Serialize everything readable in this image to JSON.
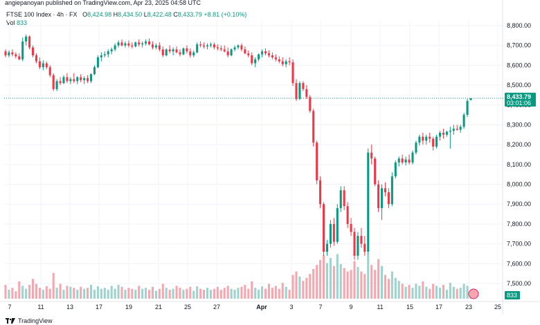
{
  "header": {
    "publisher": "angiepanoyan published on TradingView.com, Apr 23, 2025 04:58 UTC"
  },
  "legend": {
    "symbol": "FTSE 100 Index · 4h · FX",
    "o_label": "O",
    "o_value": "8,424.98",
    "h_label": "H",
    "h_value": "8,434.50",
    "l_label": "L",
    "l_value": "8,422.48",
    "c_label": "C",
    "c_value": "8,433.79",
    "change": "+8.81 (+0.10%)",
    "vol_label": "Vol",
    "vol_value": "833"
  },
  "footer": {
    "brand": "TradingView"
  },
  "colors": {
    "up": "#089981",
    "down": "#f23645",
    "vol_up": "#9ed3cd",
    "vol_down": "#f5a6ae",
    "grid": "#f0f3fa"
  },
  "chart_data": {
    "type": "candlestick",
    "yaxis_ticks": [
      "8,800.00",
      "8,700.00",
      "8,600.00",
      "8,500.00",
      "8,400.00",
      "8,300.00",
      "8,200.00",
      "8,100.00",
      "8,000.00",
      "7,900.00",
      "7,800.00",
      "7,700.00",
      "7,600.00",
      "7,500.00"
    ],
    "ylim": [
      7460,
      8880
    ],
    "xaxis_ticks": [
      "7",
      "11",
      "13",
      "17",
      "19",
      "21",
      "25",
      "27",
      "Apr",
      "3",
      "7",
      "9",
      "11",
      "15",
      "17",
      "23",
      "25"
    ],
    "last_price_label": "8,433.79",
    "countdown_label": "03:01:06",
    "volume_label": "833",
    "candles": [
      {
        "o": 8670,
        "h": 8680,
        "l": 8640,
        "c": 8650,
        "v": 28
      },
      {
        "o": 8650,
        "h": 8675,
        "l": 8640,
        "c": 8665,
        "v": 18
      },
      {
        "o": 8665,
        "h": 8680,
        "l": 8645,
        "c": 8655,
        "v": 22
      },
      {
        "o": 8655,
        "h": 8665,
        "l": 8635,
        "c": 8645,
        "v": 15
      },
      {
        "o": 8645,
        "h": 8660,
        "l": 8625,
        "c": 8630,
        "v": 35
      },
      {
        "o": 8630,
        "h": 8740,
        "l": 8620,
        "c": 8720,
        "v": 26
      },
      {
        "o": 8720,
        "h": 8755,
        "l": 8700,
        "c": 8745,
        "v": 20
      },
      {
        "o": 8745,
        "h": 8750,
        "l": 8680,
        "c": 8690,
        "v": 28
      },
      {
        "o": 8690,
        "h": 8700,
        "l": 8640,
        "c": 8650,
        "v": 40
      },
      {
        "o": 8650,
        "h": 8660,
        "l": 8610,
        "c": 8620,
        "v": 30
      },
      {
        "o": 8620,
        "h": 8640,
        "l": 8580,
        "c": 8590,
        "v": 22
      },
      {
        "o": 8590,
        "h": 8625,
        "l": 8575,
        "c": 8610,
        "v": 18
      },
      {
        "o": 8610,
        "h": 8620,
        "l": 8580,
        "c": 8590,
        "v": 25
      },
      {
        "o": 8590,
        "h": 8600,
        "l": 8540,
        "c": 8550,
        "v": 20
      },
      {
        "o": 8550,
        "h": 8560,
        "l": 8470,
        "c": 8480,
        "v": 52
      },
      {
        "o": 8480,
        "h": 8530,
        "l": 8470,
        "c": 8520,
        "v": 22
      },
      {
        "o": 8520,
        "h": 8540,
        "l": 8500,
        "c": 8510,
        "v": 30
      },
      {
        "o": 8510,
        "h": 8550,
        "l": 8505,
        "c": 8540,
        "v": 18
      },
      {
        "o": 8540,
        "h": 8560,
        "l": 8510,
        "c": 8520,
        "v": 26
      },
      {
        "o": 8520,
        "h": 8540,
        "l": 8505,
        "c": 8530,
        "v": 24
      },
      {
        "o": 8530,
        "h": 8560,
        "l": 8510,
        "c": 8520,
        "v": 22
      },
      {
        "o": 8520,
        "h": 8545,
        "l": 8505,
        "c": 8540,
        "v": 18
      },
      {
        "o": 8540,
        "h": 8555,
        "l": 8515,
        "c": 8525,
        "v": 24
      },
      {
        "o": 8525,
        "h": 8545,
        "l": 8505,
        "c": 8535,
        "v": 20
      },
      {
        "o": 8535,
        "h": 8550,
        "l": 8510,
        "c": 8520,
        "v": 22
      },
      {
        "o": 8520,
        "h": 8560,
        "l": 8510,
        "c": 8555,
        "v": 28
      },
      {
        "o": 8555,
        "h": 8600,
        "l": 8550,
        "c": 8590,
        "v": 18
      },
      {
        "o": 8590,
        "h": 8650,
        "l": 8585,
        "c": 8640,
        "v": 25
      },
      {
        "o": 8640,
        "h": 8665,
        "l": 8620,
        "c": 8650,
        "v": 20
      },
      {
        "o": 8650,
        "h": 8670,
        "l": 8640,
        "c": 8655,
        "v": 22
      },
      {
        "o": 8655,
        "h": 8680,
        "l": 8640,
        "c": 8670,
        "v": 18
      },
      {
        "o": 8670,
        "h": 8690,
        "l": 8655,
        "c": 8680,
        "v": 26
      },
      {
        "o": 8680,
        "h": 8710,
        "l": 8670,
        "c": 8700,
        "v": 20
      },
      {
        "o": 8700,
        "h": 8725,
        "l": 8690,
        "c": 8715,
        "v": 28
      },
      {
        "o": 8715,
        "h": 8730,
        "l": 8695,
        "c": 8700,
        "v": 24
      },
      {
        "o": 8700,
        "h": 8720,
        "l": 8690,
        "c": 8710,
        "v": 18
      },
      {
        "o": 8710,
        "h": 8725,
        "l": 8690,
        "c": 8700,
        "v": 22
      },
      {
        "o": 8700,
        "h": 8715,
        "l": 8685,
        "c": 8695,
        "v": 20
      },
      {
        "o": 8695,
        "h": 8720,
        "l": 8690,
        "c": 8715,
        "v": 18
      },
      {
        "o": 8715,
        "h": 8730,
        "l": 8695,
        "c": 8705,
        "v": 26
      },
      {
        "o": 8705,
        "h": 8720,
        "l": 8690,
        "c": 8710,
        "v": 20
      },
      {
        "o": 8710,
        "h": 8730,
        "l": 8700,
        "c": 8720,
        "v": 22
      },
      {
        "o": 8720,
        "h": 8735,
        "l": 8700,
        "c": 8705,
        "v": 18
      },
      {
        "o": 8705,
        "h": 8720,
        "l": 8680,
        "c": 8690,
        "v": 24
      },
      {
        "o": 8690,
        "h": 8710,
        "l": 8680,
        "c": 8700,
        "v": 16
      },
      {
        "o": 8700,
        "h": 8715,
        "l": 8670,
        "c": 8680,
        "v": 20
      },
      {
        "o": 8680,
        "h": 8695,
        "l": 8640,
        "c": 8650,
        "v": 30
      },
      {
        "o": 8650,
        "h": 8685,
        "l": 8645,
        "c": 8680,
        "v": 22
      },
      {
        "o": 8680,
        "h": 8700,
        "l": 8660,
        "c": 8670,
        "v": 18
      },
      {
        "o": 8670,
        "h": 8690,
        "l": 8650,
        "c": 8680,
        "v": 20
      },
      {
        "o": 8680,
        "h": 8695,
        "l": 8660,
        "c": 8665,
        "v": 26
      },
      {
        "o": 8665,
        "h": 8680,
        "l": 8645,
        "c": 8655,
        "v": 22
      },
      {
        "o": 8655,
        "h": 8690,
        "l": 8650,
        "c": 8685,
        "v": 18
      },
      {
        "o": 8685,
        "h": 8700,
        "l": 8660,
        "c": 8670,
        "v": 20
      },
      {
        "o": 8670,
        "h": 8685,
        "l": 8640,
        "c": 8650,
        "v": 24
      },
      {
        "o": 8650,
        "h": 8675,
        "l": 8640,
        "c": 8665,
        "v": 16
      },
      {
        "o": 8665,
        "h": 8715,
        "l": 8660,
        "c": 8705,
        "v": 25
      },
      {
        "o": 8705,
        "h": 8720,
        "l": 8690,
        "c": 8700,
        "v": 20
      },
      {
        "o": 8700,
        "h": 8715,
        "l": 8685,
        "c": 8695,
        "v": 18
      },
      {
        "o": 8695,
        "h": 8710,
        "l": 8680,
        "c": 8700,
        "v": 22
      },
      {
        "o": 8700,
        "h": 8715,
        "l": 8690,
        "c": 8705,
        "v": 18
      },
      {
        "o": 8705,
        "h": 8715,
        "l": 8680,
        "c": 8690,
        "v": 20
      },
      {
        "o": 8690,
        "h": 8705,
        "l": 8675,
        "c": 8685,
        "v": 24
      },
      {
        "o": 8685,
        "h": 8700,
        "l": 8670,
        "c": 8680,
        "v": 18
      },
      {
        "o": 8680,
        "h": 8700,
        "l": 8665,
        "c": 8670,
        "v": 22
      },
      {
        "o": 8670,
        "h": 8690,
        "l": 8640,
        "c": 8650,
        "v": 26
      },
      {
        "o": 8650,
        "h": 8685,
        "l": 8645,
        "c": 8680,
        "v": 20
      },
      {
        "o": 8680,
        "h": 8700,
        "l": 8670,
        "c": 8690,
        "v": 18
      },
      {
        "o": 8690,
        "h": 8705,
        "l": 8680,
        "c": 8700,
        "v": 22
      },
      {
        "o": 8700,
        "h": 8710,
        "l": 8670,
        "c": 8680,
        "v": 24
      },
      {
        "o": 8680,
        "h": 8695,
        "l": 8655,
        "c": 8660,
        "v": 28
      },
      {
        "o": 8660,
        "h": 8675,
        "l": 8640,
        "c": 8650,
        "v": 20
      },
      {
        "o": 8650,
        "h": 8665,
        "l": 8600,
        "c": 8610,
        "v": 35
      },
      {
        "o": 8610,
        "h": 8640,
        "l": 8590,
        "c": 8630,
        "v": 22
      },
      {
        "o": 8630,
        "h": 8660,
        "l": 8620,
        "c": 8655,
        "v": 18
      },
      {
        "o": 8655,
        "h": 8680,
        "l": 8640,
        "c": 8670,
        "v": 25
      },
      {
        "o": 8670,
        "h": 8685,
        "l": 8650,
        "c": 8660,
        "v": 20
      },
      {
        "o": 8660,
        "h": 8675,
        "l": 8640,
        "c": 8650,
        "v": 30
      },
      {
        "o": 8650,
        "h": 8665,
        "l": 8630,
        "c": 8640,
        "v": 22
      },
      {
        "o": 8640,
        "h": 8655,
        "l": 8620,
        "c": 8630,
        "v": 26
      },
      {
        "o": 8630,
        "h": 8645,
        "l": 8610,
        "c": 8620,
        "v": 20
      },
      {
        "o": 8620,
        "h": 8640,
        "l": 8595,
        "c": 8605,
        "v": 32
      },
      {
        "o": 8605,
        "h": 8630,
        "l": 8590,
        "c": 8620,
        "v": 24
      },
      {
        "o": 8620,
        "h": 8640,
        "l": 8600,
        "c": 8615,
        "v": 18
      },
      {
        "o": 8615,
        "h": 8630,
        "l": 8495,
        "c": 8510,
        "v": 48
      },
      {
        "o": 8510,
        "h": 8530,
        "l": 8420,
        "c": 8430,
        "v": 55
      },
      {
        "o": 8430,
        "h": 8520,
        "l": 8425,
        "c": 8510,
        "v": 45
      },
      {
        "o": 8510,
        "h": 8520,
        "l": 8470,
        "c": 8480,
        "v": 36
      },
      {
        "o": 8480,
        "h": 8500,
        "l": 8430,
        "c": 8440,
        "v": 42
      },
      {
        "o": 8440,
        "h": 8450,
        "l": 8360,
        "c": 8370,
        "v": 50
      },
      {
        "o": 8370,
        "h": 8380,
        "l": 8190,
        "c": 8210,
        "v": 60
      },
      {
        "o": 8210,
        "h": 8220,
        "l": 8000,
        "c": 8020,
        "v": 68
      },
      {
        "o": 8020,
        "h": 8040,
        "l": 7880,
        "c": 7900,
        "v": 78
      },
      {
        "o": 7900,
        "h": 7910,
        "l": 7640,
        "c": 7660,
        "v": 88
      },
      {
        "o": 7660,
        "h": 7720,
        "l": 7640,
        "c": 7700,
        "v": 72
      },
      {
        "o": 7700,
        "h": 7820,
        "l": 7680,
        "c": 7800,
        "v": 82
      },
      {
        "o": 7800,
        "h": 7830,
        "l": 7690,
        "c": 7710,
        "v": 66
      },
      {
        "o": 7710,
        "h": 7900,
        "l": 7700,
        "c": 7880,
        "v": 90
      },
      {
        "o": 7880,
        "h": 7990,
        "l": 7860,
        "c": 7970,
        "v": 70
      },
      {
        "o": 7970,
        "h": 7990,
        "l": 7870,
        "c": 7890,
        "v": 62
      },
      {
        "o": 7890,
        "h": 7910,
        "l": 7780,
        "c": 7800,
        "v": 55
      },
      {
        "o": 7800,
        "h": 7830,
        "l": 7740,
        "c": 7760,
        "v": 58
      },
      {
        "o": 7760,
        "h": 7780,
        "l": 7620,
        "c": 7640,
        "v": 76
      },
      {
        "o": 7640,
        "h": 7760,
        "l": 7620,
        "c": 7740,
        "v": 64
      },
      {
        "o": 7740,
        "h": 7780,
        "l": 7680,
        "c": 7700,
        "v": 55
      },
      {
        "o": 7700,
        "h": 7740,
        "l": 7640,
        "c": 7660,
        "v": 50
      },
      {
        "o": 7660,
        "h": 8180,
        "l": 7650,
        "c": 8160,
        "v": 92
      },
      {
        "o": 8160,
        "h": 8200,
        "l": 8100,
        "c": 8130,
        "v": 68
      },
      {
        "o": 8130,
        "h": 8140,
        "l": 7990,
        "c": 8000,
        "v": 58
      },
      {
        "o": 8000,
        "h": 8020,
        "l": 7860,
        "c": 7880,
        "v": 80
      },
      {
        "o": 7880,
        "h": 8000,
        "l": 7820,
        "c": 7980,
        "v": 66
      },
      {
        "o": 7980,
        "h": 8010,
        "l": 7940,
        "c": 7960,
        "v": 48
      },
      {
        "o": 7960,
        "h": 7980,
        "l": 7880,
        "c": 7900,
        "v": 40
      },
      {
        "o": 7900,
        "h": 8060,
        "l": 7890,
        "c": 8040,
        "v": 55
      },
      {
        "o": 8040,
        "h": 8120,
        "l": 8030,
        "c": 8110,
        "v": 42
      },
      {
        "o": 8110,
        "h": 8140,
        "l": 8090,
        "c": 8130,
        "v": 36
      },
      {
        "o": 8130,
        "h": 8150,
        "l": 8100,
        "c": 8110,
        "v": 30
      },
      {
        "o": 8110,
        "h": 8140,
        "l": 8095,
        "c": 8125,
        "v": 24
      },
      {
        "o": 8125,
        "h": 8150,
        "l": 8100,
        "c": 8110,
        "v": 28
      },
      {
        "o": 8110,
        "h": 8170,
        "l": 8100,
        "c": 8160,
        "v": 22
      },
      {
        "o": 8160,
        "h": 8220,
        "l": 8150,
        "c": 8210,
        "v": 30
      },
      {
        "o": 8210,
        "h": 8250,
        "l": 8195,
        "c": 8240,
        "v": 26
      },
      {
        "o": 8240,
        "h": 8260,
        "l": 8200,
        "c": 8220,
        "v": 35
      },
      {
        "o": 8220,
        "h": 8250,
        "l": 8200,
        "c": 8240,
        "v": 24
      },
      {
        "o": 8240,
        "h": 8260,
        "l": 8210,
        "c": 8230,
        "v": 20
      },
      {
        "o": 8230,
        "h": 8240,
        "l": 8170,
        "c": 8190,
        "v": 30
      },
      {
        "o": 8190,
        "h": 8250,
        "l": 8180,
        "c": 8240,
        "v": 26
      },
      {
        "o": 8240,
        "h": 8270,
        "l": 8220,
        "c": 8260,
        "v": 22
      },
      {
        "o": 8260,
        "h": 8280,
        "l": 8230,
        "c": 8250,
        "v": 28
      },
      {
        "o": 8250,
        "h": 8270,
        "l": 8240,
        "c": 8265,
        "v": 18
      },
      {
        "o": 8265,
        "h": 8290,
        "l": 8180,
        "c": 8270,
        "v": 32
      },
      {
        "o": 8270,
        "h": 8300,
        "l": 8250,
        "c": 8280,
        "v": 24
      },
      {
        "o": 8280,
        "h": 8300,
        "l": 8270,
        "c": 8275,
        "v": 20
      },
      {
        "o": 8275,
        "h": 8300,
        "l": 8260,
        "c": 8290,
        "v": 22
      },
      {
        "o": 8290,
        "h": 8360,
        "l": 8280,
        "c": 8350,
        "v": 30
      },
      {
        "o": 8350,
        "h": 8430,
        "l": 8340,
        "c": 8420,
        "v": 26
      },
      {
        "o": 8424.98,
        "h": 8434.5,
        "l": 8422.48,
        "c": 8433.79,
        "v": 14
      }
    ]
  }
}
